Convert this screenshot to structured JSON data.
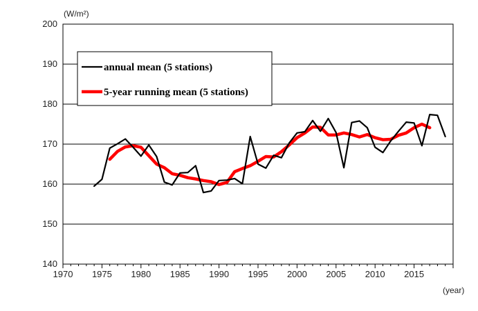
{
  "chart_data": {
    "type": "line",
    "ylabel": "(W/m²)",
    "xlabel": "(year)",
    "xlim": [
      1970,
      2020
    ],
    "ylim": [
      140,
      200
    ],
    "x_ticks": [
      1970,
      1975,
      1980,
      1985,
      1990,
      1995,
      2000,
      2005,
      2010,
      2015
    ],
    "y_ticks": [
      140,
      150,
      160,
      170,
      180,
      190,
      200
    ],
    "grid": "horizontal",
    "legend_position": "top-left",
    "series": [
      {
        "name": "annual mean (5 stations)",
        "color": "#000000",
        "x": [
          1974,
          1975,
          1976,
          1977,
          1978,
          1979,
          1980,
          1981,
          1982,
          1983,
          1984,
          1985,
          1986,
          1987,
          1988,
          1989,
          1990,
          1991,
          1992,
          1993,
          1994,
          1995,
          1996,
          1997,
          1998,
          1999,
          2000,
          2001,
          2002,
          2003,
          2004,
          2005,
          2006,
          2007,
          2008,
          2009,
          2010,
          2011,
          2012,
          2013,
          2014,
          2015,
          2016,
          2017,
          2018,
          2019
        ],
        "y": [
          159.5,
          161.2,
          169.0,
          170.1,
          171.3,
          169.2,
          167.0,
          169.8,
          166.9,
          160.5,
          159.8,
          162.8,
          162.9,
          164.6,
          157.9,
          158.3,
          160.9,
          161.0,
          161.4,
          160.1,
          171.9,
          165.0,
          164.0,
          167.2,
          166.6,
          170.3,
          172.8,
          173.1,
          175.9,
          173.2,
          176.4,
          172.9,
          164.1,
          175.4,
          175.8,
          174.1,
          169.2,
          167.9,
          170.8,
          173.2,
          175.5,
          175.3,
          169.6,
          177.4,
          177.2,
          171.9
        ]
      },
      {
        "name": "5-year running mean (5 stations)",
        "color": "#ff0000",
        "x": [
          1976,
          1977,
          1978,
          1979,
          1980,
          1981,
          1982,
          1983,
          1984,
          1985,
          1986,
          1987,
          1988,
          1989,
          1990,
          1991,
          1992,
          1993,
          1994,
          1995,
          1996,
          1997,
          1998,
          1999,
          2000,
          2001,
          2002,
          2003,
          2004,
          2005,
          2006,
          2007,
          2008,
          2009,
          2010,
          2011,
          2012,
          2013,
          2014,
          2015,
          2016,
          2017
        ],
        "y": [
          166.2,
          168.2,
          169.3,
          169.6,
          169.2,
          167.1,
          165.0,
          164.1,
          162.6,
          162.2,
          161.6,
          161.3,
          160.9,
          160.6,
          159.9,
          160.4,
          163.1,
          163.9,
          164.6,
          165.7,
          166.9,
          166.8,
          168.1,
          169.8,
          171.6,
          172.8,
          174.3,
          174.2,
          172.3,
          172.3,
          172.8,
          172.4,
          171.8,
          172.4,
          171.6,
          171.1,
          171.2,
          172.2,
          172.8,
          174.1,
          175.0,
          174.1
        ]
      }
    ]
  }
}
